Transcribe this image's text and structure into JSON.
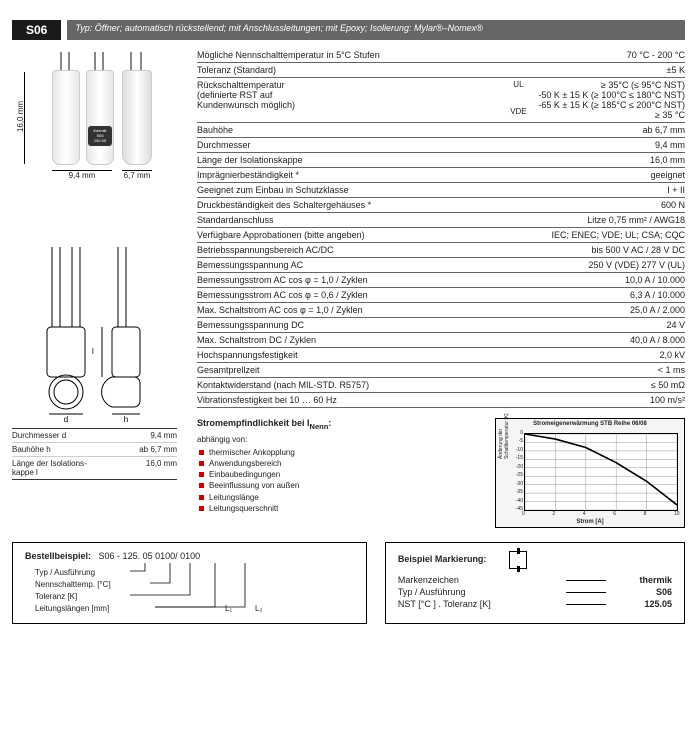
{
  "badge": "S06",
  "typ_bar": "Typ: Öffner; automatisch rückstellend; mit Anschlussleitungen; mit Epoxy; Isolierung: Mylar®–Nomex®",
  "img_dims": {
    "h": "16,0 mm",
    "w1": "9,4 mm",
    "w2": "6,7 mm"
  },
  "logo_text": "thermik\nS06\n150.05",
  "dims_table": [
    {
      "l": "Durchmesser d",
      "v": "9,4 mm"
    },
    {
      "l": "Bauhöhe h",
      "v": "ab 6,7 mm"
    },
    {
      "l": "Länge der Isolations-\nkappe l",
      "v": "16,0 mm"
    }
  ],
  "specs": [
    {
      "l": "Mögliche Nennschalttemperatur in 5°C Stufen",
      "v": "70 °C - 200 °C"
    },
    {
      "l": "Toleranz (Standard)",
      "v": "±5 K"
    },
    {
      "l": "Rückschalttemperatur\n(definierte RST auf\nKundenwunsch möglich)",
      "m": "UL\n\n\nVDE",
      "v": "≥ 35°C (≤ 95°C NST)\n-50 K ± 15 K (≥ 100°C ≤ 180°C NST)\n-65 K ± 15 K (≥ 185°C ≤ 200°C NST)\n≥ 35 °C"
    },
    {
      "l": "Bauhöhe",
      "v": "ab 6,7 mm"
    },
    {
      "l": "Durchmesser",
      "v": "9,4 mm"
    },
    {
      "l": "Länge der Isolationskappe",
      "v": "16,0 mm"
    },
    {
      "l": "Imprägnierbeständigkeit *",
      "v": "geeignet"
    },
    {
      "l": "Geeignet zum Einbau in Schutzklasse",
      "v": "I + II"
    },
    {
      "l": "Druckbeständigkeit des Schaltergehäuses *",
      "v": "600 N"
    },
    {
      "l": "Standardanschluss",
      "v": "Litze 0,75 mm² / AWG18"
    },
    {
      "l": "Verfügbare Approbationen (bitte angeben)",
      "v": "IEC; ENEC; VDE; UL; CSA; CQC"
    },
    {
      "l": "Betriebsspannungsbereich AC/DC",
      "v": "bis 500 V AC / 28 V DC"
    },
    {
      "l": "Bemessungsspannung AC",
      "v": "250 V (VDE) 277 V (UL)"
    },
    {
      "l": "Bemessungsstrom AC cos φ = 1,0 / Zyklen",
      "v": "10,0 A / 10.000"
    },
    {
      "l": "Bemessungsstrom AC cos φ = 0,6 / Zyklen",
      "v": "6,3 A / 10.000"
    },
    {
      "l": "Max. Schaltstrom AC cos φ = 1,0  / Zyklen",
      "v": "25,0 A / 2.000"
    },
    {
      "l": "Bemessungsspannung DC",
      "v": "24 V"
    },
    {
      "l": "Max. Schaltstrom DC / Zyklen",
      "v": "40,0 A / 8.000"
    },
    {
      "l": "Hochspannungsfestigkeit",
      "v": "2,0 kV"
    },
    {
      "l": "Gesamtprellzeit",
      "v": "< 1 ms"
    },
    {
      "l": "Kontaktwiderstand (nach MIL-STD. R5757)",
      "v": "≤ 50 mΩ"
    },
    {
      "l": "Vibrationsfestigkeit bei 10 … 60 Hz",
      "v": "100 m/s²"
    }
  ],
  "strom": {
    "title": "Stromempfindlichkeit bei I",
    "title_sub": "Nenn",
    "sub": "abhängig von:",
    "items": [
      "thermischer Ankopplung",
      "Anwendungsbereich",
      "Einbaubedingungen",
      "Beeinflussung von außen",
      "Leitungslänge",
      "Leitungsquerschnitt"
    ]
  },
  "chart": {
    "title": "Stromeigenerwärmung STB Reihe 06/08",
    "ylabel": "Änderung der\nSchalttemperatur [K]",
    "xlabel": "Strom [A]",
    "yticks": [
      "0",
      "-5",
      "-10",
      "-15",
      "-20",
      "-25",
      "-30",
      "-35",
      "-40",
      "-45"
    ],
    "xticks": [
      "0",
      "2",
      "4",
      "6",
      "8",
      "10"
    ],
    "grid_color": "#999",
    "line_color": "#000",
    "bg": "#ffffff",
    "points": [
      [
        0,
        0
      ],
      [
        2,
        -3
      ],
      [
        4,
        -8
      ],
      [
        6,
        -17
      ],
      [
        8,
        -28
      ],
      [
        10,
        -42
      ]
    ]
  },
  "order": {
    "title": "Bestellbeispiel:",
    "code": "S06 - 125. 05 0100/ 0100",
    "lines": [
      "Typ / Ausführung",
      "Nennschalttemp. [°C]",
      "Toleranz [K]",
      "Leitungslängen [mm]"
    ],
    "L1": "L₁",
    "L2": "L₂"
  },
  "marking": {
    "title": "Beispiel Markierung:",
    "rows": [
      {
        "l": "Markenzeichen",
        "v": "thermik"
      },
      {
        "l": "Typ / Ausführung",
        "v": "S06"
      },
      {
        "l": "NST [°C ] . Toleranz [K]",
        "v": "125.05"
      }
    ]
  }
}
